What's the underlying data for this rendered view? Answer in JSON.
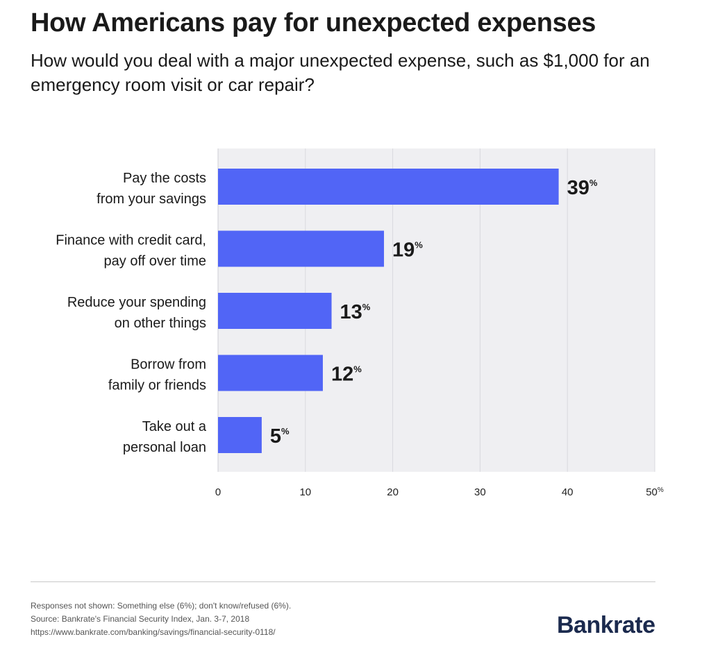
{
  "header": {
    "title": "How Americans pay for unexpected expenses",
    "subtitle": "How would you deal with a major unexpected expense, such as $1,000 for an emergency room visit or car repair?"
  },
  "chart_data": {
    "type": "bar",
    "orientation": "horizontal",
    "title": "How Americans pay for unexpected expenses",
    "xlabel": "",
    "ylabel": "",
    "xlim": [
      0,
      50
    ],
    "grid": true,
    "value_suffix": "%",
    "categories": [
      [
        "Pay the costs",
        "from your savings"
      ],
      [
        "Finance with credit card,",
        "pay off over time"
      ],
      [
        "Reduce your spending",
        "on other things"
      ],
      [
        "Borrow from",
        "family or friends"
      ],
      [
        "Take out a",
        "personal loan"
      ]
    ],
    "values": [
      39,
      19,
      13,
      12,
      5
    ],
    "ticks": [
      0,
      10,
      20,
      30,
      40,
      50
    ],
    "last_tick_suffix": "%",
    "bar_color": "#5165f6",
    "plot_background": "#efeff2",
    "gridline_color": "#d9d9de"
  },
  "footer": {
    "note": "Responses not shown: Something else (6%); don't know/refused (6%).",
    "source": "Source: Bankrate's Financial Security Index, Jan. 3-7, 2018",
    "url": "https://www.bankrate.com/banking/savings/financial-security-0118/",
    "logo": "Bankrate"
  }
}
